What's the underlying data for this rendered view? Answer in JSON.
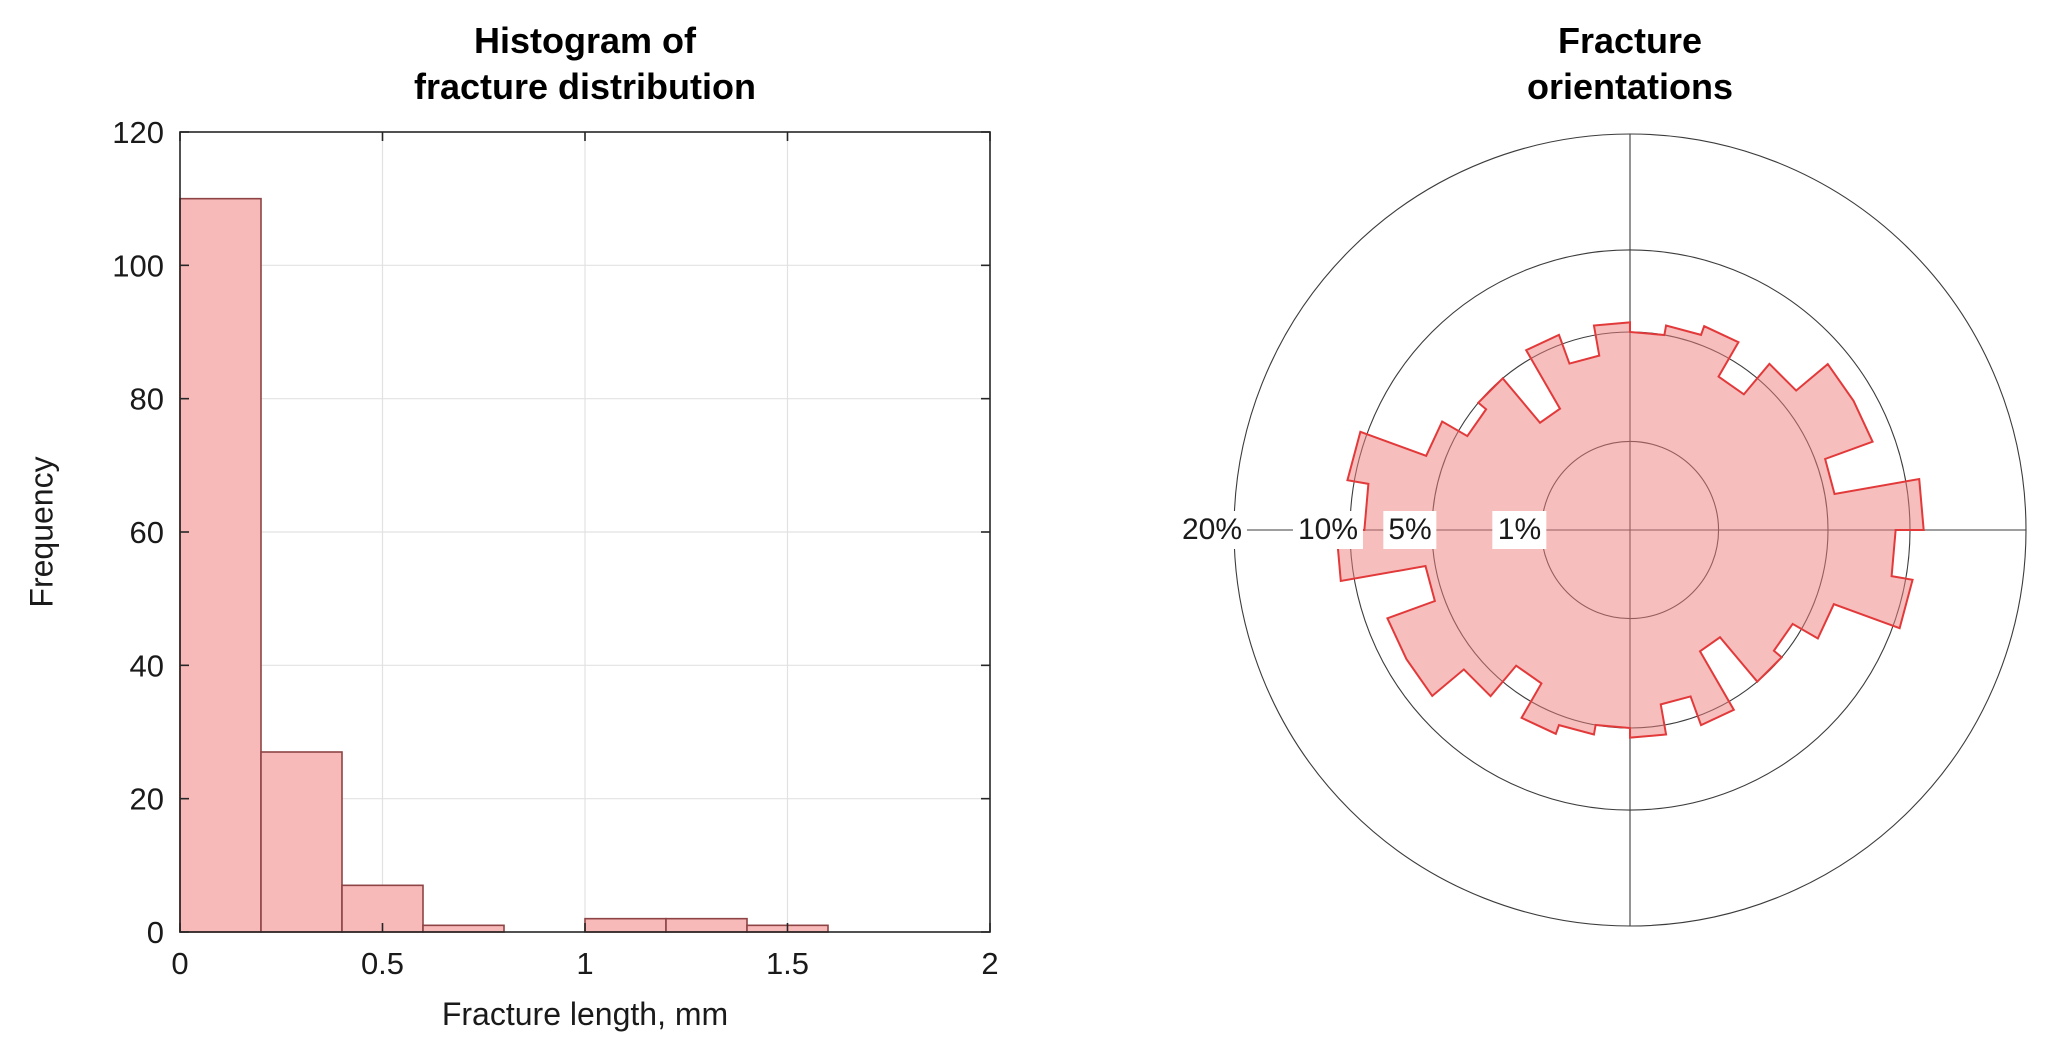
{
  "charts": {
    "histogram": {
      "title_line1": "Histogram of",
      "title_line2": "fracture distribution",
      "xlabel": "Fracture length, mm",
      "ylabel": "Frequency"
    },
    "rose": {
      "title_line1": "Fracture",
      "title_line2": "orientations"
    }
  },
  "chart_data": [
    {
      "type": "bar",
      "name": "fracture-length-histogram",
      "title": "Histogram of fracture distribution",
      "xlabel": "Fracture length, mm",
      "ylabel": "Frequency",
      "bin_edges": [
        0,
        0.2,
        0.4,
        0.6,
        0.8,
        1.0,
        1.2,
        1.4,
        1.6
      ],
      "values": [
        110,
        27,
        7,
        1,
        0,
        2,
        2,
        1
      ],
      "xlim": [
        0,
        2
      ],
      "ylim": [
        0,
        120
      ],
      "xticks": [
        0,
        0.5,
        1,
        1.5,
        2
      ],
      "xtick_labels": [
        "0",
        "0.5",
        "1",
        "1.5",
        "2"
      ],
      "yticks": [
        0,
        20,
        40,
        60,
        80,
        100,
        120
      ],
      "ytick_labels": [
        "0",
        "20",
        "40",
        "60",
        "80",
        "100",
        "120"
      ],
      "grid": true,
      "grid_color": "#e2e2e2",
      "axis_color": "#262626",
      "bar_fill": "#f8b9b9",
      "bar_edge": "#8e4444"
    },
    {
      "type": "rose",
      "name": "fracture-orientations-rose",
      "title": "Fracture orientations",
      "scale": "sqrt",
      "max_percent": 20,
      "rings_percent": [
        20,
        10,
        5,
        1
      ],
      "ring_labels": [
        "20%",
        "10%",
        "5%",
        "1%"
      ],
      "bin_width_deg": 10,
      "values_percent": [
        11,
        5.5,
        8.5,
        8.5,
        6,
        4,
        6,
        5.5,
        5,
        5.5,
        4,
        5.5,
        2.5,
        5,
        4.5,
        6,
        10.5,
        9,
        11,
        5.5,
        8.5,
        8.5,
        6,
        4,
        6,
        5.5,
        5,
        5.5,
        4,
        5.5,
        2.5,
        5,
        4.5,
        6,
        10.5,
        9
      ],
      "grid_color": "#3c3c3c",
      "fill": "#ef7d7d",
      "fill_opacity": 0.5,
      "edge": "#e23a3a"
    }
  ]
}
